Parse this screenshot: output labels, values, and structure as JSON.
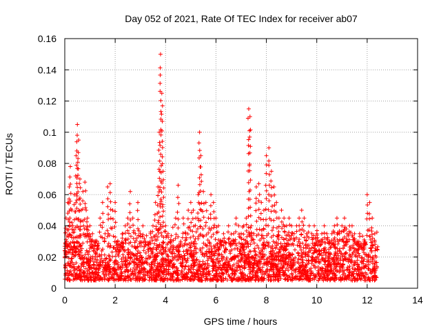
{
  "chart_data": {
    "type": "scatter",
    "title": "Day 052 of 2021, Rate Of TEC Index for receiver ab07",
    "xlabel": "GPS time / hours",
    "ylabel": "ROTI / TECUs",
    "xlim": [
      0,
      14
    ],
    "ylim": [
      0,
      0.16
    ],
    "xticks": [
      0,
      2,
      4,
      6,
      8,
      10,
      12,
      14
    ],
    "yticks": [
      0,
      0.02,
      0.04,
      0.06,
      0.08,
      0.1,
      0.12,
      0.14,
      0.16
    ],
    "xtick_labels": [
      "0",
      "2",
      "4",
      "6",
      "8",
      "10",
      "12",
      "14"
    ],
    "ytick_labels": [
      "0",
      "0.02",
      "0.04",
      "0.06",
      "0.08",
      "0.1",
      "0.12",
      "0.14",
      "0.16"
    ],
    "grid": true,
    "marker": "+",
    "color": "#ff0000",
    "series": [
      {
        "name": "ROTI",
        "x": [
          0.02,
          0.05,
          0.08,
          0.12,
          0.18,
          0.22,
          0.28,
          0.32,
          0.38,
          0.45,
          0.5,
          0.55,
          0.6,
          0.65,
          0.72,
          0.8,
          0.85,
          0.9,
          1.0,
          1.1,
          1.2,
          1.3,
          1.4,
          1.5,
          1.6,
          1.7,
          1.8,
          1.9,
          2.0,
          2.1,
          2.2,
          2.3,
          2.4,
          2.5,
          2.6,
          2.7,
          2.8,
          2.9,
          3.0,
          3.1,
          3.2,
          3.3,
          3.4,
          3.5,
          3.6,
          3.7,
          3.75,
          3.8,
          3.85,
          3.9,
          4.0,
          4.1,
          4.2,
          4.3,
          4.4,
          4.5,
          4.6,
          4.7,
          4.8,
          4.9,
          5.0,
          5.1,
          5.2,
          5.3,
          5.35,
          5.4,
          5.5,
          5.6,
          5.7,
          5.8,
          5.9,
          6.0,
          6.1,
          6.2,
          6.3,
          6.4,
          6.5,
          6.6,
          6.7,
          6.8,
          6.9,
          7.0,
          7.1,
          7.2,
          7.3,
          7.35,
          7.4,
          7.5,
          7.6,
          7.7,
          7.8,
          7.9,
          8.0,
          8.1,
          8.2,
          8.3,
          8.4,
          8.5,
          8.6,
          8.7,
          8.8,
          8.9,
          9.0,
          9.1,
          9.2,
          9.3,
          9.4,
          9.5,
          9.6,
          9.7,
          9.8,
          9.9,
          10.0,
          10.1,
          10.2,
          10.3,
          10.4,
          10.5,
          10.6,
          10.7,
          10.8,
          10.9,
          11.0,
          11.1,
          11.2,
          11.3,
          11.4,
          11.5,
          11.6,
          11.7,
          11.8,
          11.9,
          12.0,
          12.1,
          12.2,
          12.3,
          12.4
        ],
        "y": [
          0.015,
          0.045,
          0.03,
          0.055,
          0.065,
          0.078,
          0.05,
          0.04,
          0.06,
          0.085,
          0.105,
          0.095,
          0.07,
          0.05,
          0.062,
          0.068,
          0.05,
          0.045,
          0.04,
          0.035,
          0.03,
          0.025,
          0.045,
          0.055,
          0.035,
          0.065,
          0.067,
          0.05,
          0.055,
          0.03,
          0.025,
          0.035,
          0.04,
          0.045,
          0.062,
          0.045,
          0.035,
          0.055,
          0.035,
          0.04,
          0.03,
          0.025,
          0.035,
          0.04,
          0.055,
          0.065,
          0.1,
          0.15,
          0.125,
          0.075,
          0.04,
          0.035,
          0.03,
          0.025,
          0.045,
          0.066,
          0.03,
          0.045,
          0.035,
          0.05,
          0.055,
          0.05,
          0.045,
          0.06,
          0.1,
          0.085,
          0.062,
          0.055,
          0.045,
          0.06,
          0.055,
          0.045,
          0.04,
          0.03,
          0.035,
          0.025,
          0.04,
          0.03,
          0.035,
          0.045,
          0.04,
          0.035,
          0.04,
          0.045,
          0.115,
          0.11,
          0.04,
          0.035,
          0.065,
          0.067,
          0.055,
          0.05,
          0.085,
          0.09,
          0.075,
          0.065,
          0.055,
          0.045,
          0.05,
          0.045,
          0.04,
          0.045,
          0.04,
          0.035,
          0.04,
          0.045,
          0.05,
          0.045,
          0.035,
          0.04,
          0.035,
          0.04,
          0.035,
          0.03,
          0.035,
          0.04,
          0.035,
          0.03,
          0.035,
          0.04,
          0.045,
          0.035,
          0.04,
          0.045,
          0.035,
          0.04,
          0.04,
          0.035,
          0.03,
          0.035,
          0.025,
          0.03,
          0.06,
          0.055,
          0.045,
          0.035,
          0.025
        ]
      }
    ],
    "dense_band": {
      "x_range": [
        0,
        12.4
      ],
      "y_range": [
        0.005,
        0.03
      ]
    }
  }
}
